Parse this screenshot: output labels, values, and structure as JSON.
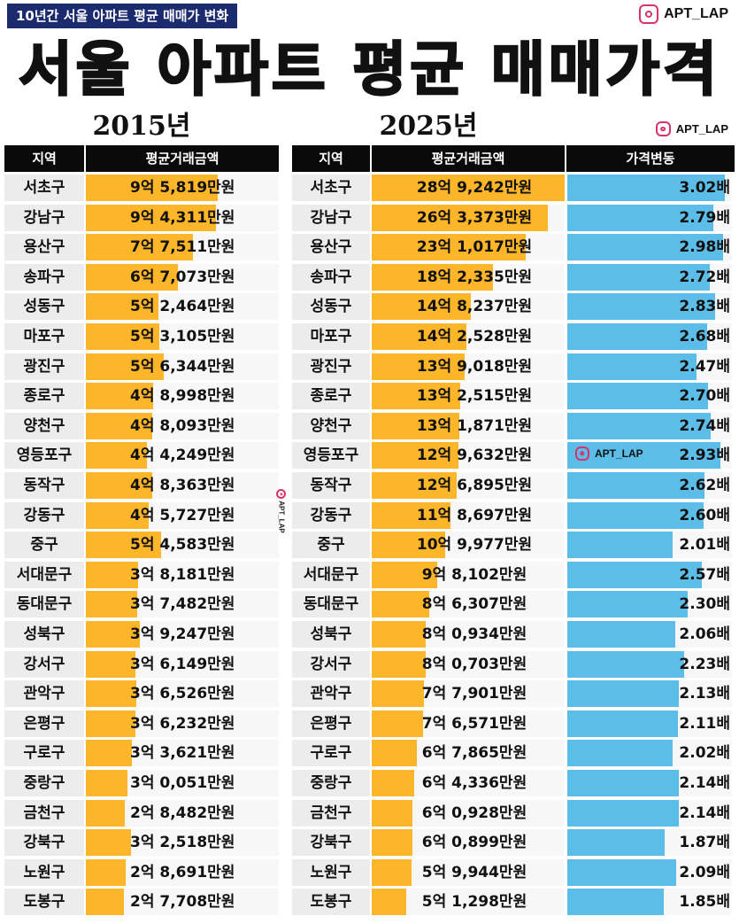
{
  "tag": "10년간 서울 아파트 평균 매매가 변화",
  "brand": "APT_LAP",
  "colors": {
    "bar_2015": "#fdb52a",
    "bar_2025": "#fdb52a",
    "bar_change": "#5cbde8",
    "header_bg": "#0a0a0a",
    "tag_bg": "#1c2a6e"
  },
  "icons": [
    "instagram-icon"
  ],
  "chart_data": {
    "type": "table",
    "title": "서울 아파트 평균 매매가격",
    "year_left": "2015년",
    "year_right": "2025년",
    "headers": {
      "region": "지역",
      "avg_price": "평균거래금액",
      "change": "가격변동"
    },
    "unit_price": "만원",
    "rows": [
      {
        "region": "서초구",
        "p2015": 95819,
        "p2015_label": "9억 5,819만원",
        "p2025": 289242,
        "p2025_label": "28억 9,242만원",
        "ratio": 3.02,
        "ratio_label": "3.02배"
      },
      {
        "region": "강남구",
        "p2015": 94311,
        "p2015_label": "9억 4,311만원",
        "p2025": 263373,
        "p2025_label": "26억 3,373만원",
        "ratio": 2.79,
        "ratio_label": "2.79배"
      },
      {
        "region": "용산구",
        "p2015": 77511,
        "p2015_label": "7억 7,511만원",
        "p2025": 231017,
        "p2025_label": "23억 1,017만원",
        "ratio": 2.98,
        "ratio_label": "2.98배"
      },
      {
        "region": "송파구",
        "p2015": 67073,
        "p2015_label": "6억 7,073만원",
        "p2025": 182335,
        "p2025_label": "18억 2,335만원",
        "ratio": 2.72,
        "ratio_label": "2.72배"
      },
      {
        "region": "성동구",
        "p2015": 52464,
        "p2015_label": "5억 2,464만원",
        "p2025": 148237,
        "p2025_label": "14억 8,237만원",
        "ratio": 2.83,
        "ratio_label": "2.83배"
      },
      {
        "region": "마포구",
        "p2015": 53105,
        "p2015_label": "5억 3,105만원",
        "p2025": 142528,
        "p2025_label": "14억 2,528만원",
        "ratio": 2.68,
        "ratio_label": "2.68배"
      },
      {
        "region": "광진구",
        "p2015": 56344,
        "p2015_label": "5억 6,344만원",
        "p2025": 139018,
        "p2025_label": "13억 9,018만원",
        "ratio": 2.47,
        "ratio_label": "2.47배"
      },
      {
        "region": "종로구",
        "p2015": 48998,
        "p2015_label": "4억 8,998만원",
        "p2025": 132515,
        "p2025_label": "13억 2,515만원",
        "ratio": 2.7,
        "ratio_label": "2.70배"
      },
      {
        "region": "양천구",
        "p2015": 48093,
        "p2015_label": "4억 8,093만원",
        "p2025": 131871,
        "p2025_label": "13억 1,871만원",
        "ratio": 2.74,
        "ratio_label": "2.74배"
      },
      {
        "region": "영등포구",
        "p2015": 44249,
        "p2015_label": "4억 4,249만원",
        "p2025": 129632,
        "p2025_label": "12억 9,632만원",
        "ratio": 2.93,
        "ratio_label": "2.93배"
      },
      {
        "region": "동작구",
        "p2015": 48363,
        "p2015_label": "4억 8,363만원",
        "p2025": 126895,
        "p2025_label": "12억 6,895만원",
        "ratio": 2.62,
        "ratio_label": "2.62배"
      },
      {
        "region": "강동구",
        "p2015": 45727,
        "p2015_label": "4억 5,727만원",
        "p2025": 118697,
        "p2025_label": "11억 8,697만원",
        "ratio": 2.6,
        "ratio_label": "2.60배"
      },
      {
        "region": "중구",
        "p2015": 54583,
        "p2015_label": "5억 4,583만원",
        "p2025": 109977,
        "p2025_label": "10억 9,977만원",
        "ratio": 2.01,
        "ratio_label": "2.01배"
      },
      {
        "region": "서대문구",
        "p2015": 38181,
        "p2015_label": "3억 8,181만원",
        "p2025": 98102,
        "p2025_label": "9억 8,102만원",
        "ratio": 2.57,
        "ratio_label": "2.57배"
      },
      {
        "region": "동대문구",
        "p2015": 37482,
        "p2015_label": "3억 7,482만원",
        "p2025": 86307,
        "p2025_label": "8억 6,307만원",
        "ratio": 2.3,
        "ratio_label": "2.30배"
      },
      {
        "region": "성북구",
        "p2015": 39247,
        "p2015_label": "3억 9,247만원",
        "p2025": 80934,
        "p2025_label": "8억 0,934만원",
        "ratio": 2.06,
        "ratio_label": "2.06배"
      },
      {
        "region": "강서구",
        "p2015": 36149,
        "p2015_label": "3억 6,149만원",
        "p2025": 80703,
        "p2025_label": "8억 0,703만원",
        "ratio": 2.23,
        "ratio_label": "2.23배"
      },
      {
        "region": "관악구",
        "p2015": 36526,
        "p2015_label": "3억 6,526만원",
        "p2025": 77901,
        "p2025_label": "7억 7,901만원",
        "ratio": 2.13,
        "ratio_label": "2.13배"
      },
      {
        "region": "은평구",
        "p2015": 36232,
        "p2015_label": "3억 6,232만원",
        "p2025": 76571,
        "p2025_label": "7억 6,571만원",
        "ratio": 2.11,
        "ratio_label": "2.11배"
      },
      {
        "region": "구로구",
        "p2015": 33621,
        "p2015_label": "3억 3,621만원",
        "p2025": 67865,
        "p2025_label": "6억 7,865만원",
        "ratio": 2.02,
        "ratio_label": "2.02배"
      },
      {
        "region": "중랑구",
        "p2015": 30051,
        "p2015_label": "3억 0,051만원",
        "p2025": 64336,
        "p2025_label": "6억 4,336만원",
        "ratio": 2.14,
        "ratio_label": "2.14배"
      },
      {
        "region": "금천구",
        "p2015": 28482,
        "p2015_label": "2억 8,482만원",
        "p2025": 60928,
        "p2025_label": "6억 0,928만원",
        "ratio": 2.14,
        "ratio_label": "2.14배"
      },
      {
        "region": "강북구",
        "p2015": 32518,
        "p2015_label": "3억 2,518만원",
        "p2025": 60899,
        "p2025_label": "6억 0,899만원",
        "ratio": 1.87,
        "ratio_label": "1.87배"
      },
      {
        "region": "노원구",
        "p2015": 28691,
        "p2015_label": "2억 8,691만원",
        "p2025": 59944,
        "p2025_label": "5억 9,944만원",
        "ratio": 2.09,
        "ratio_label": "2.09배"
      },
      {
        "region": "도봉구",
        "p2015": 27708,
        "p2015_label": "2억 7,708만원",
        "p2025": 51298,
        "p2025_label": "5억 1,298만원",
        "ratio": 1.85,
        "ratio_label": "1.85배"
      }
    ]
  }
}
